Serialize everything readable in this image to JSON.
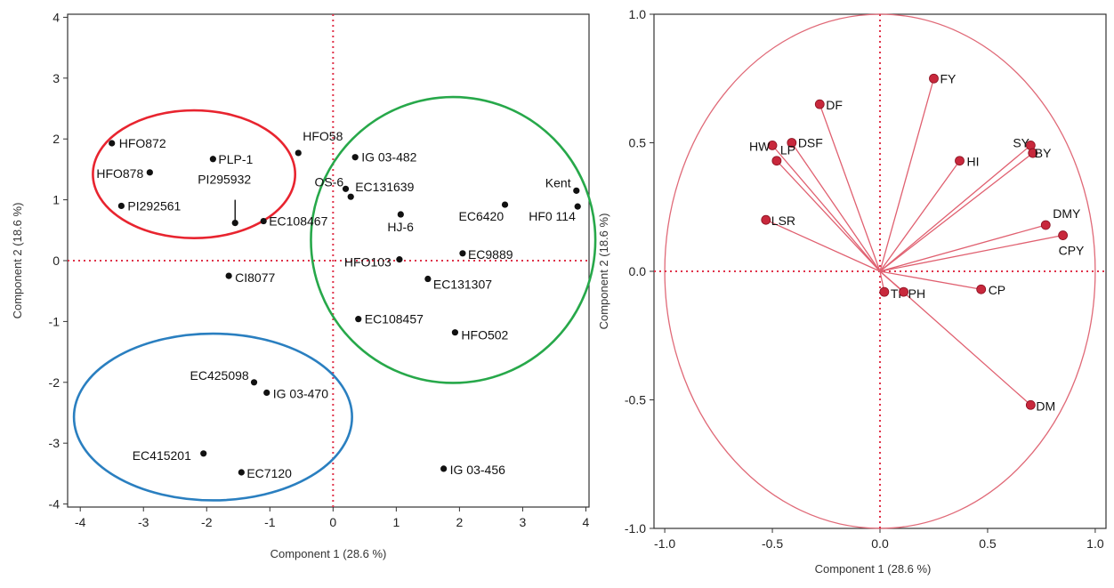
{
  "chart_data": [
    {
      "type": "scatter",
      "title": "",
      "xlabel": "Component 1  (28.6 %)",
      "ylabel": "Component 2  (18.6 %)",
      "xlim": [
        -4.2,
        4.05
      ],
      "ylim": [
        -4.05,
        4.05
      ],
      "xticks": [
        -4,
        -3,
        -2,
        -1,
        0,
        1,
        2,
        3,
        4
      ],
      "xtick_labels": [
        "-4",
        "-3",
        "-2",
        "-1",
        "0",
        "1",
        "2",
        "3",
        "4"
      ],
      "yticks": [
        -4,
        -3,
        -2,
        -1,
        0,
        1,
        2,
        3,
        4
      ],
      "ytick_labels": [
        "-4",
        "-3",
        "-2",
        "-1",
        "0",
        "1",
        "2",
        "3",
        "4"
      ],
      "reference_lines": {
        "x": 0,
        "y": 0,
        "color": "#e0334a",
        "style": "dotted"
      },
      "points": [
        {
          "label": "HFO872",
          "x": -3.5,
          "y": 1.93
        },
        {
          "label": "HFO878",
          "x": -2.9,
          "y": 1.45
        },
        {
          "label": "PLP-1",
          "x": -1.9,
          "y": 1.67
        },
        {
          "label": "PI292561",
          "x": -3.35,
          "y": 0.9
        },
        {
          "label": "PI295932",
          "x": -1.55,
          "y": 0.62
        },
        {
          "label": "HFO58",
          "x": -0.55,
          "y": 1.77
        },
        {
          "label": "EC108467",
          "x": -1.1,
          "y": 0.65
        },
        {
          "label": "IG 03-482",
          "x": 0.35,
          "y": 1.7
        },
        {
          "label": "OS-6",
          "x": 0.2,
          "y": 1.18
        },
        {
          "label": "EC131639",
          "x": 0.28,
          "y": 1.05
        },
        {
          "label": "HJ-6",
          "x": 1.07,
          "y": 0.76
        },
        {
          "label": "EC6420",
          "x": 2.72,
          "y": 0.92
        },
        {
          "label": "Kent",
          "x": 3.85,
          "y": 1.15
        },
        {
          "label": "HF0 114",
          "x": 3.87,
          "y": 0.89
        },
        {
          "label": "CI8077",
          "x": -1.65,
          "y": -0.25
        },
        {
          "label": "HFO103",
          "x": 1.05,
          "y": 0.02
        },
        {
          "label": "EC9889",
          "x": 2.05,
          "y": 0.12
        },
        {
          "label": "EC131307",
          "x": 1.5,
          "y": -0.3
        },
        {
          "label": "EC108457",
          "x": 0.4,
          "y": -0.96
        },
        {
          "label": "HFO502",
          "x": 1.93,
          "y": -1.18
        },
        {
          "label": "EC425098",
          "x": -1.25,
          "y": -2.0
        },
        {
          "label": "IG 03-470",
          "x": -1.05,
          "y": -2.17
        },
        {
          "label": "EC415201",
          "x": -2.05,
          "y": -3.17
        },
        {
          "label": "EC7120",
          "x": -1.45,
          "y": -3.48
        },
        {
          "label": "IG 03-456",
          "x": 1.75,
          "y": -3.42
        }
      ],
      "cluster_ellipses": [
        {
          "color": "#e8242f",
          "cx": -2.2,
          "cy": 1.42,
          "rx": 1.6,
          "ry": 1.05
        },
        {
          "color": "#27a84a",
          "cx": 1.9,
          "cy": 0.34,
          "rx": 2.25,
          "ry": 2.35
        },
        {
          "color": "#2a7fc0",
          "cx": -1.9,
          "cy": -2.57,
          "rx": 2.2,
          "ry": 1.37
        }
      ]
    },
    {
      "type": "scatter",
      "subtype": "loading-plot",
      "title": "",
      "xlabel": "Component 1  (28.6 %)",
      "ylabel": "Component 2  (18.6 %)",
      "xlim": [
        -1.05,
        1.05
      ],
      "ylim": [
        -1.0,
        1.0
      ],
      "xticks": [
        -1.0,
        -0.5,
        0.0,
        0.5,
        1.0
      ],
      "xtick_labels": [
        "-1.0",
        "-0.5",
        "0.0",
        "0.5",
        "1.0"
      ],
      "yticks": [
        -1.0,
        -0.5,
        0.0,
        0.5,
        1.0
      ],
      "ytick_labels": [
        "-1.0",
        "-0.5",
        "0.0",
        "0.5",
        "1.0"
      ],
      "reference_lines": {
        "x": 0,
        "y": 0,
        "color": "#e0334a",
        "style": "dotted"
      },
      "unit_circle": true,
      "series_color": "#e06070",
      "point_color": "#c8283c",
      "loadings": [
        {
          "label": "FY",
          "x": 0.25,
          "y": 0.75
        },
        {
          "label": "DF",
          "x": -0.28,
          "y": 0.65
        },
        {
          "label": "DSF",
          "x": -0.41,
          "y": 0.5
        },
        {
          "label": "HW",
          "x": -0.5,
          "y": 0.49
        },
        {
          "label": "LP",
          "x": -0.48,
          "y": 0.43
        },
        {
          "label": "LSR",
          "x": -0.53,
          "y": 0.2
        },
        {
          "label": "HI",
          "x": 0.37,
          "y": 0.43
        },
        {
          "label": "SY",
          "x": 0.7,
          "y": 0.49
        },
        {
          "label": "BY",
          "x": 0.71,
          "y": 0.46
        },
        {
          "label": "DMY",
          "x": 0.77,
          "y": 0.18
        },
        {
          "label": "CPY",
          "x": 0.85,
          "y": 0.14
        },
        {
          "label": "TP",
          "x": 0.02,
          "y": -0.08
        },
        {
          "label": "PH",
          "x": 0.11,
          "y": -0.08
        },
        {
          "label": "CP",
          "x": 0.47,
          "y": -0.07
        },
        {
          "label": "DM",
          "x": 0.7,
          "y": -0.52
        }
      ]
    }
  ]
}
